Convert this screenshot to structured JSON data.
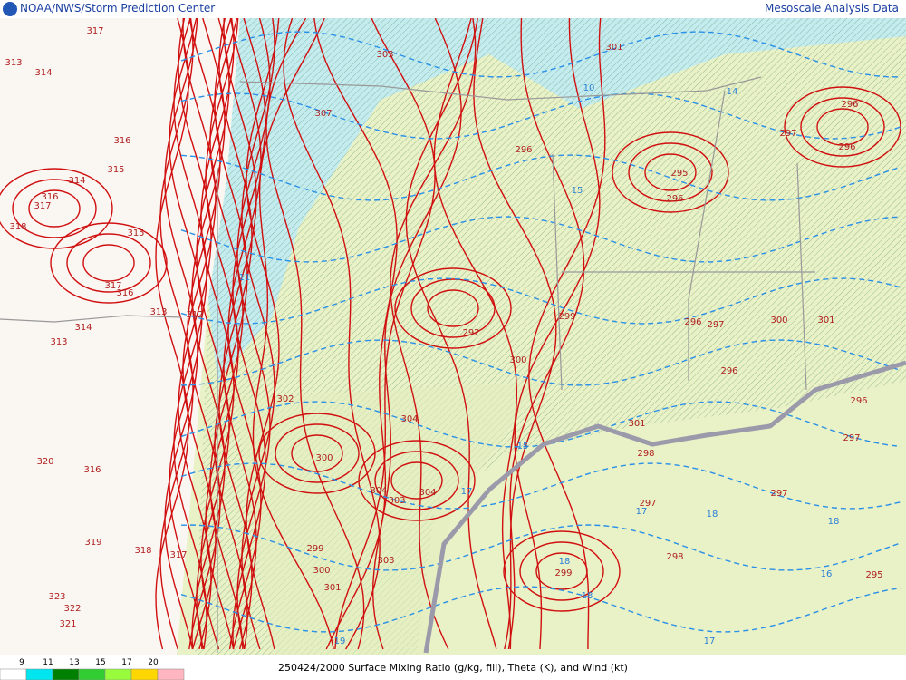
{
  "header": {
    "left": "NOAA/NWS/Storm Prediction Center",
    "right": "Mesoscale Analysis Data"
  },
  "footer": {
    "caption": "250424/2000 Surface Mixing Ratio (g/kg, fill), Theta (K), and Wind (kt)"
  },
  "legend": {
    "values": [
      9,
      11,
      13,
      15,
      17,
      20
    ],
    "colors": [
      "#ffffff",
      "#00e5ee",
      "#008000",
      "#32cd32",
      "#98fb3c",
      "#ffd700",
      "#ffb6c1"
    ]
  },
  "theta_labels": [
    317,
    313,
    314,
    316,
    315,
    314,
    316,
    317,
    318,
    315,
    317,
    316,
    313,
    314,
    313,
    320,
    316,
    319,
    318,
    317,
    323,
    322,
    321,
    312,
    307,
    303,
    301,
    296,
    295,
    296,
    292,
    300,
    299,
    302,
    304,
    300,
    304,
    303,
    304,
    299,
    300,
    301,
    303,
    298,
    297,
    298,
    299,
    297,
    296,
    297,
    295,
    296,
    297,
    296,
    296,
    296,
    297,
    301,
    300,
    301
  ],
  "mixing_labels": [
    11,
    10,
    14,
    18,
    18,
    18,
    18,
    16,
    17,
    17,
    15,
    19,
    17,
    15
  ]
}
